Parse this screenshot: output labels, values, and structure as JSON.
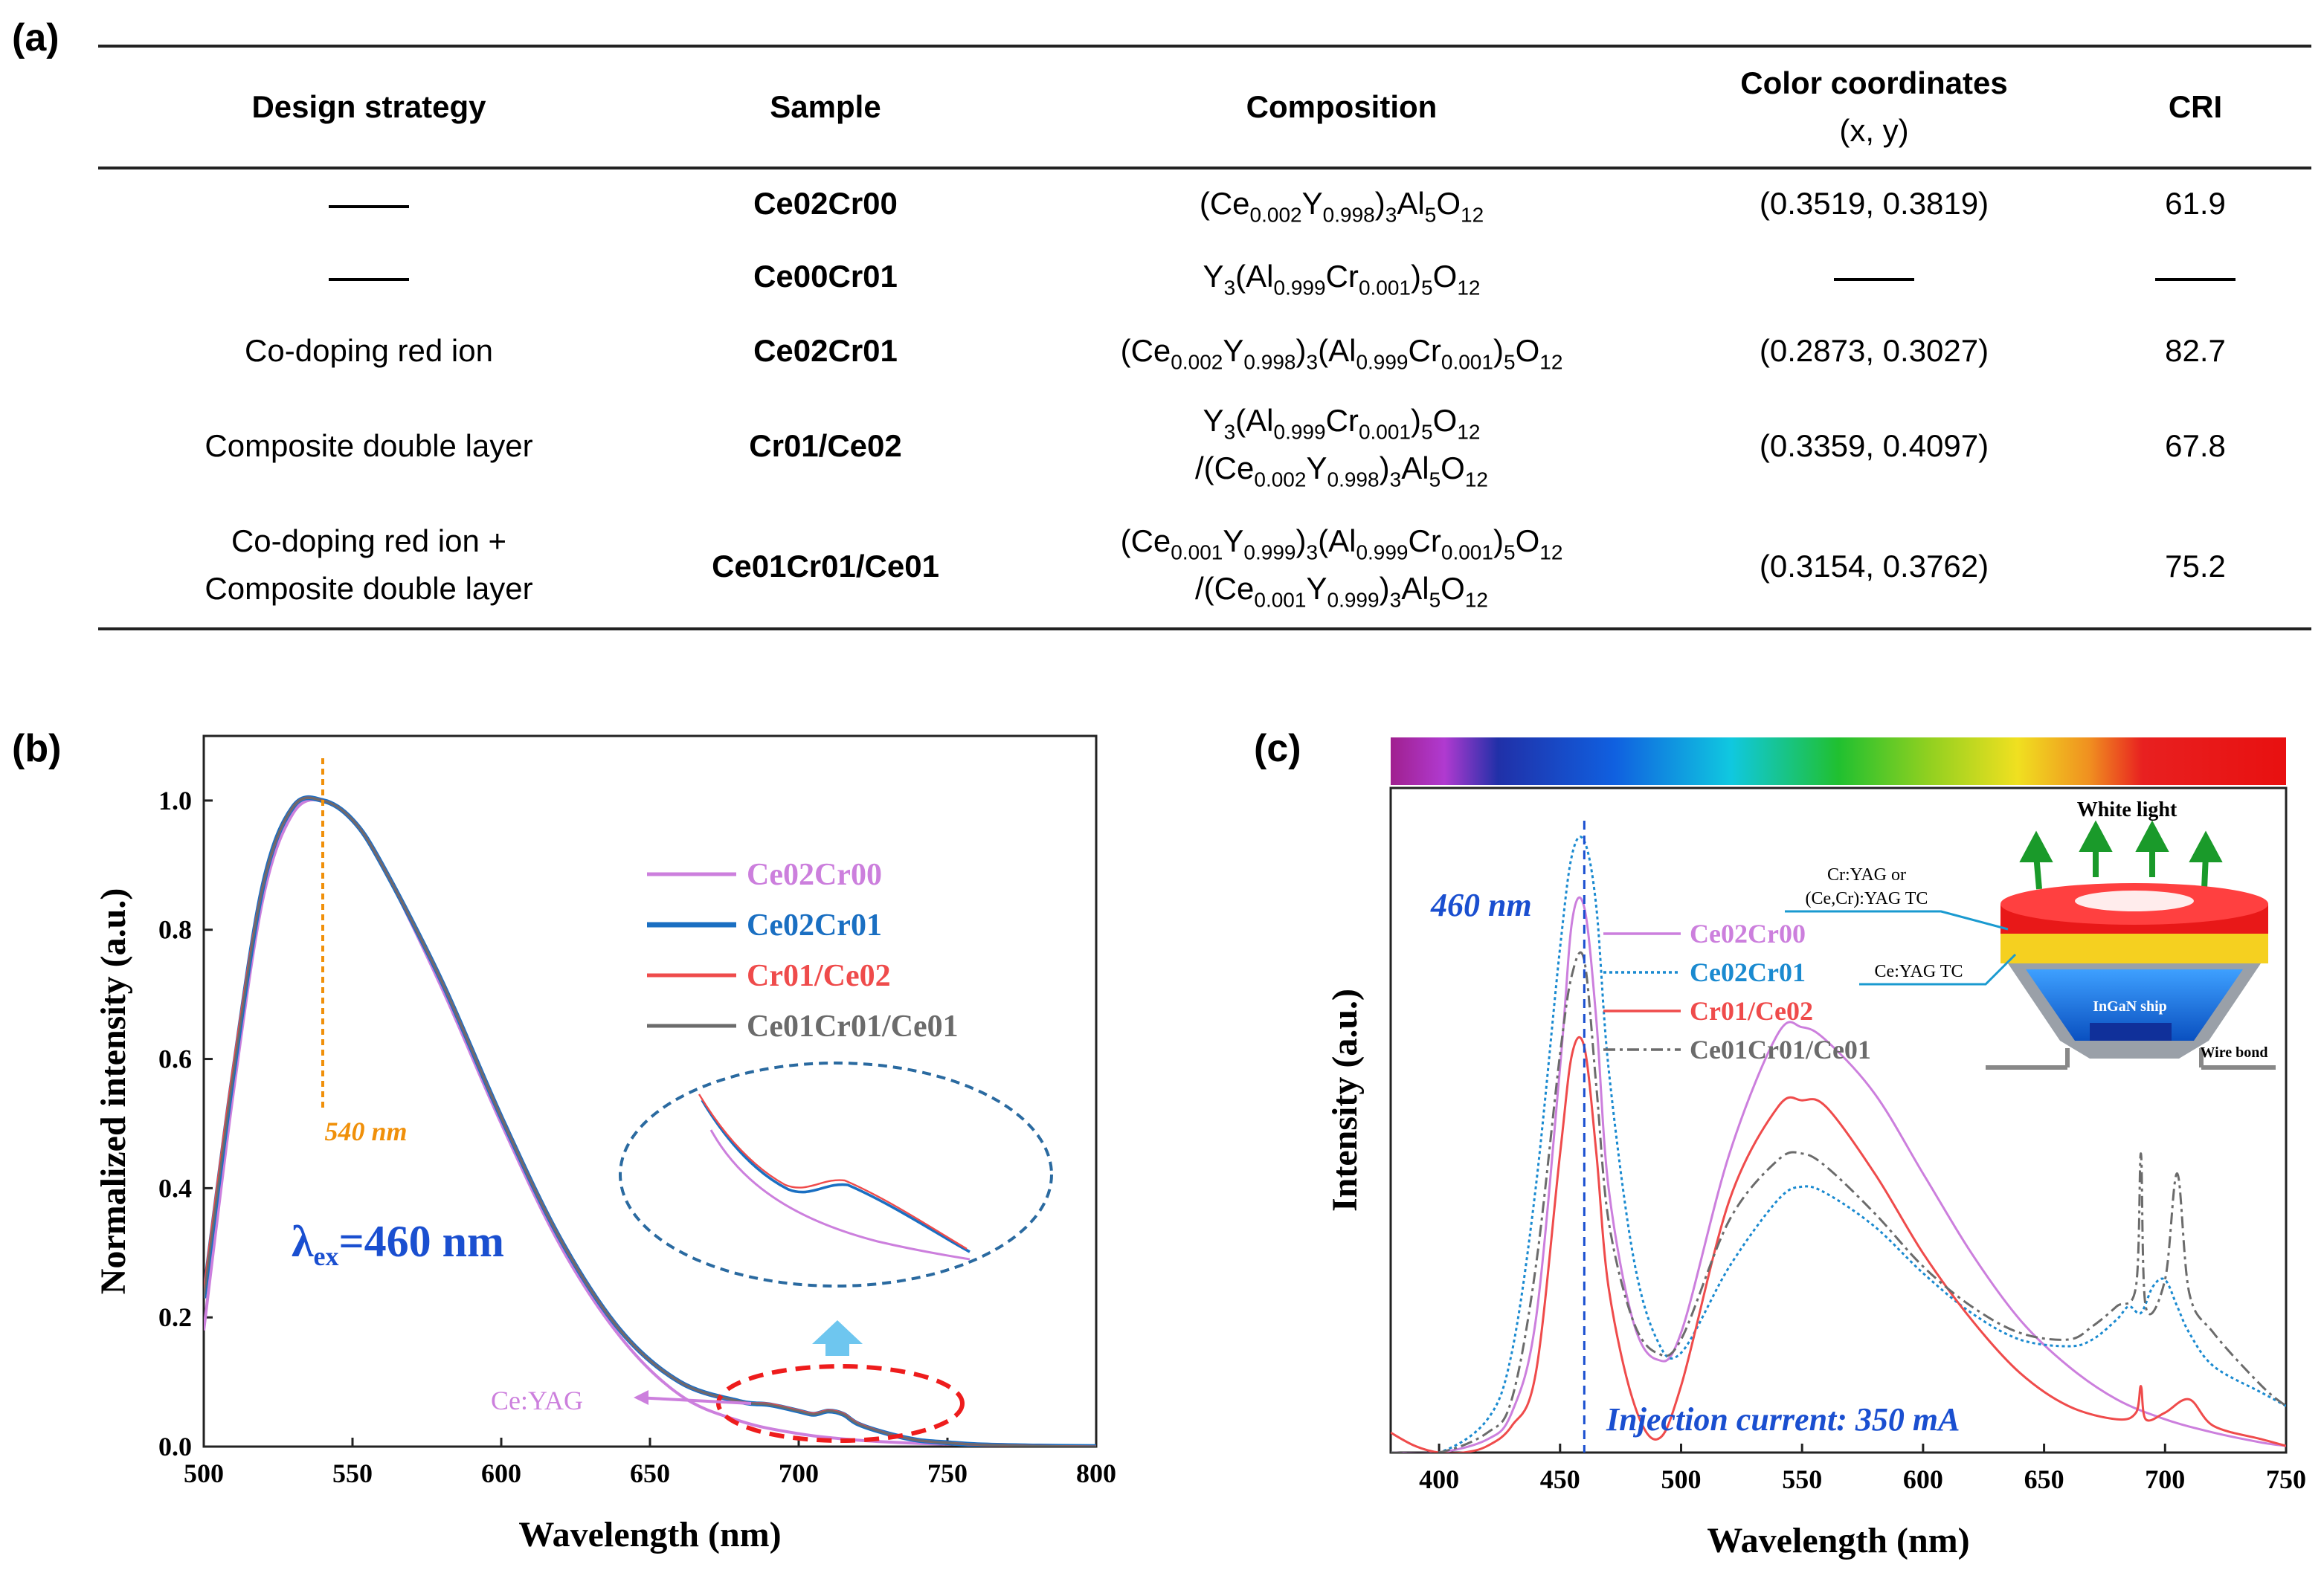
{
  "panel_labels": {
    "a": "(a)",
    "b": "(b)",
    "c": "(c)"
  },
  "table": {
    "headers": {
      "strategy": "Design strategy",
      "sample": "Sample",
      "composition": "Composition",
      "color_line1": "Color coordinates",
      "color_line2": "(x, y)",
      "cri": "CRI"
    },
    "rows": [
      {
        "strategy": [
          "—"
        ],
        "sample": "Ce02Cr00",
        "composition": [
          [
            [
              "t",
              "(Ce"
            ],
            [
              "s",
              "0.002"
            ],
            [
              "t",
              "Y"
            ],
            [
              "s",
              "0.998"
            ],
            [
              "t",
              ")"
            ],
            [
              "s",
              "3"
            ],
            [
              "t",
              "Al"
            ],
            [
              "s",
              "5"
            ],
            [
              "t",
              "O"
            ],
            [
              "s",
              "12"
            ]
          ]
        ],
        "color": "(0.3519, 0.3819)",
        "cri": "61.9"
      },
      {
        "strategy": [
          "—"
        ],
        "sample": "Ce00Cr01",
        "composition": [
          [
            [
              "t",
              "Y"
            ],
            [
              "s",
              "3"
            ],
            [
              "t",
              "(Al"
            ],
            [
              "s",
              "0.999"
            ],
            [
              "t",
              "Cr"
            ],
            [
              "s",
              "0.001"
            ],
            [
              "t",
              ")"
            ],
            [
              "s",
              "5"
            ],
            [
              "t",
              "O"
            ],
            [
              "s",
              "12"
            ]
          ]
        ],
        "color": "—",
        "cri": "—"
      },
      {
        "strategy": [
          "Co-doping red ion"
        ],
        "sample": "Ce02Cr01",
        "composition": [
          [
            [
              "t",
              "(Ce"
            ],
            [
              "s",
              "0.002"
            ],
            [
              "t",
              "Y"
            ],
            [
              "s",
              "0.998"
            ],
            [
              "t",
              ")"
            ],
            [
              "s",
              "3"
            ],
            [
              "t",
              "(Al"
            ],
            [
              "s",
              "0.999"
            ],
            [
              "t",
              "Cr"
            ],
            [
              "s",
              "0.001"
            ],
            [
              "t",
              ")"
            ],
            [
              "s",
              "5"
            ],
            [
              "t",
              "O"
            ],
            [
              "s",
              "12"
            ]
          ]
        ],
        "color": "(0.2873, 0.3027)",
        "cri": "82.7"
      },
      {
        "strategy": [
          "Composite double layer"
        ],
        "sample": "Cr01/Ce02",
        "composition": [
          [
            [
              "t",
              "Y"
            ],
            [
              "s",
              "3"
            ],
            [
              "t",
              "(Al"
            ],
            [
              "s",
              "0.999"
            ],
            [
              "t",
              "Cr"
            ],
            [
              "s",
              "0.001"
            ],
            [
              "t",
              ")"
            ],
            [
              "s",
              "5"
            ],
            [
              "t",
              "O"
            ],
            [
              "s",
              "12"
            ]
          ],
          [
            [
              "t",
              "/(Ce"
            ],
            [
              "s",
              "0.002"
            ],
            [
              "t",
              "Y"
            ],
            [
              "s",
              "0.998"
            ],
            [
              "t",
              ")"
            ],
            [
              "s",
              "3"
            ],
            [
              "t",
              "Al"
            ],
            [
              "s",
              "5"
            ],
            [
              "t",
              "O"
            ],
            [
              "s",
              "12"
            ]
          ]
        ],
        "color": "(0.3359, 0.4097)",
        "cri": "67.8"
      },
      {
        "strategy": [
          "Co-doping red ion +",
          "Composite double layer"
        ],
        "sample": "Ce01Cr01/Ce01",
        "composition": [
          [
            [
              "t",
              "(Ce"
            ],
            [
              "s",
              "0.001"
            ],
            [
              "t",
              "Y"
            ],
            [
              "s",
              "0.999"
            ],
            [
              "t",
              ")"
            ],
            [
              "s",
              "3"
            ],
            [
              "t",
              "(Al"
            ],
            [
              "s",
              "0.999"
            ],
            [
              "t",
              "Cr"
            ],
            [
              "s",
              "0.001"
            ],
            [
              "t",
              ")"
            ],
            [
              "s",
              "5"
            ],
            [
              "t",
              "O"
            ],
            [
              "s",
              "12"
            ]
          ],
          [
            [
              "t",
              "/(Ce"
            ],
            [
              "s",
              "0.001"
            ],
            [
              "t",
              "Y"
            ],
            [
              "s",
              "0.999"
            ],
            [
              "t",
              ")"
            ],
            [
              "s",
              "3"
            ],
            [
              "t",
              "Al"
            ],
            [
              "s",
              "5"
            ],
            [
              "t",
              "O"
            ],
            [
              "s",
              "12"
            ]
          ]
        ],
        "color": "(0.3154, 0.3762)",
        "cri": "75.2"
      }
    ]
  },
  "colors": {
    "ce02cr00": "#cc7fdd",
    "ce02cr01": "#1a6fc2",
    "cr01ce02": "#ef4b4b",
    "ce01cr01ce01": "#6b6b6b",
    "peak_orange": "#f0900a",
    "c_blue": "#1a8ad0",
    "text_blue": "#1a4fd0",
    "ellipse_red": "#ee1c1c",
    "ellipse_blue": "#2a6aa0"
  },
  "chart_data": [
    {
      "type": "line",
      "panel": "b",
      "xlabel": "Wavelength (nm)",
      "ylabel": "Normalized  intensity (a.u.)",
      "xlim": [
        500,
        800
      ],
      "ylim": [
        0,
        1.1
      ],
      "xticks": [
        500,
        550,
        600,
        650,
        700,
        750,
        800
      ],
      "yticks": [
        0.0,
        0.2,
        0.4,
        0.6,
        0.8,
        1.0
      ],
      "annotations": {
        "peak": "540 nm",
        "lambda_main": "λ",
        "lambda_sub": "ex",
        "lambda_rest": "=460 nm",
        "ceyag": "Ce:YAG"
      },
      "series": [
        {
          "name": "Ce02Cr00",
          "x": [
            500,
            510,
            520,
            530,
            540,
            550,
            560,
            580,
            600,
            620,
            640,
            660,
            680,
            700,
            720,
            740,
            760,
            780,
            800
          ],
          "y": [
            0.18,
            0.55,
            0.85,
            0.98,
            1.0,
            0.97,
            0.9,
            0.71,
            0.5,
            0.31,
            0.17,
            0.08,
            0.04,
            0.02,
            0.01,
            0.005,
            0.003,
            0.001,
            0.0
          ]
        },
        {
          "name": "Ce02Cr01",
          "x": [
            500,
            510,
            520,
            530,
            540,
            550,
            560,
            580,
            600,
            620,
            640,
            660,
            680,
            690,
            700,
            705,
            710,
            715,
            720,
            730,
            740,
            750,
            760,
            780,
            800
          ],
          "y": [
            0.23,
            0.58,
            0.87,
            0.99,
            1.0,
            0.97,
            0.9,
            0.72,
            0.51,
            0.32,
            0.18,
            0.1,
            0.07,
            0.065,
            0.055,
            0.05,
            0.055,
            0.05,
            0.035,
            0.02,
            0.01,
            0.006,
            0.003,
            0.001,
            0.0
          ]
        },
        {
          "name": "Cr01/Ce02",
          "x": [
            500,
            510,
            520,
            530,
            540,
            550,
            560,
            580,
            600,
            620,
            640,
            660,
            680,
            690,
            700,
            705,
            710,
            715,
            720,
            730,
            740,
            750,
            760,
            780,
            800
          ],
          "y": [
            0.24,
            0.59,
            0.87,
            0.99,
            1.0,
            0.97,
            0.9,
            0.72,
            0.51,
            0.32,
            0.18,
            0.1,
            0.07,
            0.066,
            0.056,
            0.051,
            0.056,
            0.051,
            0.036,
            0.02,
            0.01,
            0.006,
            0.003,
            0.001,
            0.0
          ]
        },
        {
          "name": "Ce01Cr01/Ce01",
          "x": [
            500,
            510,
            520,
            530,
            540,
            550,
            560,
            580,
            600,
            620,
            640,
            660,
            680,
            690,
            700,
            705,
            710,
            715,
            720,
            730,
            740,
            750,
            760,
            780,
            800
          ],
          "y": [
            0.23,
            0.58,
            0.87,
            0.99,
            1.0,
            0.97,
            0.9,
            0.72,
            0.51,
            0.32,
            0.18,
            0.1,
            0.07,
            0.065,
            0.055,
            0.05,
            0.055,
            0.05,
            0.035,
            0.02,
            0.01,
            0.006,
            0.003,
            0.001,
            0.0
          ]
        }
      ],
      "legend": [
        "Ce02Cr00",
        "Ce02Cr01",
        "Cr01/Ce02",
        "Ce01Cr01/Ce01"
      ]
    },
    {
      "type": "line",
      "panel": "c",
      "xlabel": "Wavelength (nm)",
      "ylabel": "Intensity (a.u.)",
      "xlim": [
        380,
        750
      ],
      "ylim": [
        0,
        1.0
      ],
      "xticks": [
        400,
        450,
        500,
        550,
        600,
        650,
        700,
        750
      ],
      "annotations": {
        "peak": "460 nm",
        "current": "Injection current: 350 mA"
      },
      "series": [
        {
          "name": "Ce02Cr00",
          "x": [
            380,
            400,
            420,
            430,
            440,
            450,
            455,
            460,
            465,
            470,
            480,
            490,
            500,
            520,
            540,
            550,
            560,
            580,
            600,
            620,
            640,
            660,
            680,
            700,
            720,
            740,
            750
          ],
          "y": [
            0.0,
            0.0,
            0.02,
            0.06,
            0.2,
            0.58,
            0.8,
            0.82,
            0.65,
            0.4,
            0.2,
            0.14,
            0.18,
            0.45,
            0.63,
            0.64,
            0.62,
            0.54,
            0.42,
            0.3,
            0.2,
            0.13,
            0.08,
            0.05,
            0.03,
            0.015,
            0.01
          ]
        },
        {
          "name": "Ce02Cr01",
          "x": [
            380,
            400,
            420,
            430,
            440,
            450,
            455,
            460,
            465,
            470,
            480,
            490,
            500,
            520,
            540,
            550,
            560,
            580,
            600,
            620,
            640,
            660,
            670,
            680,
            685,
            690,
            695,
            700,
            705,
            710,
            720,
            740,
            750
          ],
          "y": [
            0.0,
            0.0,
            0.05,
            0.15,
            0.4,
            0.76,
            0.9,
            0.92,
            0.82,
            0.58,
            0.3,
            0.17,
            0.15,
            0.28,
            0.38,
            0.4,
            0.39,
            0.34,
            0.27,
            0.21,
            0.17,
            0.16,
            0.17,
            0.2,
            0.22,
            0.21,
            0.25,
            0.26,
            0.22,
            0.18,
            0.13,
            0.09,
            0.07
          ]
        },
        {
          "name": "Cr01/Ce02",
          "x": [
            380,
            390,
            400,
            410,
            420,
            430,
            440,
            450,
            455,
            460,
            465,
            470,
            480,
            490,
            500,
            520,
            540,
            550,
            560,
            580,
            600,
            620,
            640,
            660,
            680,
            688,
            690,
            692,
            700,
            710,
            720,
            740,
            750
          ],
          "y": [
            0.03,
            0.01,
            0.0,
            0.0,
            0.01,
            0.04,
            0.12,
            0.45,
            0.6,
            0.61,
            0.45,
            0.25,
            0.08,
            0.02,
            0.1,
            0.38,
            0.52,
            0.53,
            0.52,
            0.42,
            0.3,
            0.2,
            0.12,
            0.07,
            0.05,
            0.06,
            0.1,
            0.05,
            0.06,
            0.08,
            0.04,
            0.02,
            0.01
          ]
        },
        {
          "name": "Ce01Cr01/Ce01",
          "x": [
            380,
            400,
            420,
            430,
            440,
            450,
            455,
            460,
            465,
            470,
            480,
            490,
            500,
            520,
            540,
            550,
            560,
            580,
            600,
            620,
            640,
            660,
            670,
            680,
            688,
            690,
            692,
            700,
            705,
            710,
            720,
            740,
            750
          ],
          "y": [
            0.0,
            0.0,
            0.03,
            0.08,
            0.28,
            0.6,
            0.72,
            0.74,
            0.55,
            0.35,
            0.2,
            0.15,
            0.17,
            0.35,
            0.44,
            0.45,
            0.43,
            0.36,
            0.28,
            0.22,
            0.18,
            0.17,
            0.19,
            0.22,
            0.25,
            0.45,
            0.22,
            0.26,
            0.42,
            0.24,
            0.18,
            0.1,
            0.07
          ]
        }
      ],
      "legend": [
        "Ce02Cr00",
        "Ce02Cr01",
        "Cr01/Ce02",
        "Ce01Cr01/Ce01"
      ],
      "schematic": {
        "white_light": "White light",
        "top_layer": "Cr:YAG or",
        "top_layer2": "(Ce,Cr):YAG TC",
        "bottom_layer": "Ce:YAG TC",
        "chip": "InGaN ship",
        "wire": "Wire bond"
      }
    }
  ]
}
